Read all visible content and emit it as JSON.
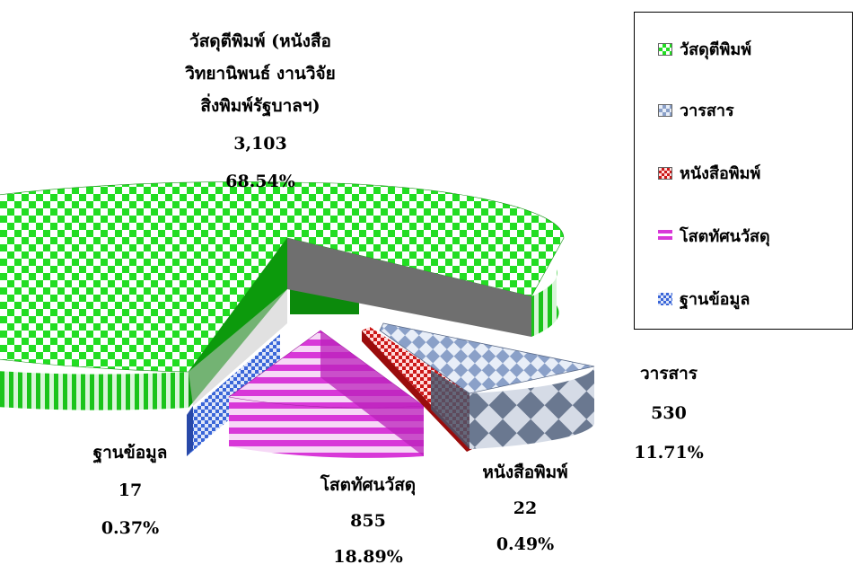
{
  "chart_data": {
    "type": "pie",
    "slices": [
      {
        "name": "วัสดุตีพิมพ์",
        "label_lines": [
          "วัสดุตีพิมพ์ (หนังสือ",
          "วิทยานิพนธ์ งานวิจัย",
          "สิ่งพิมพ์รัฐบาลฯ)"
        ],
        "value": 3103,
        "value_text": "3,103",
        "percent": "68.54%",
        "color": "#22dd22"
      },
      {
        "name": "วารสาร",
        "label_lines": [
          "วารสาร"
        ],
        "value": 530,
        "value_text": "530",
        "percent": "11.71%",
        "color": "#8aa0c8"
      },
      {
        "name": "หนังสือพิมพ์",
        "label_lines": [
          "หนังสือพิมพ์"
        ],
        "value": 22,
        "value_text": "22",
        "percent": "0.49%",
        "color": "#cc1818"
      },
      {
        "name": "โสตทัศนวัสดุ",
        "label_lines": [
          "โสตทัศนวัสดุ"
        ],
        "value": 855,
        "value_text": "855",
        "percent": "18.89%",
        "color": "#d838d8"
      },
      {
        "name": "ฐานข้อมูล",
        "label_lines": [
          "ฐานข้อมูล"
        ],
        "value": 17,
        "value_text": "17",
        "percent": "0.37%",
        "color": "#3a66d8"
      }
    ],
    "legend": {
      "position": "right",
      "items": [
        "วัสดุตีพิมพ์",
        "วารสาร",
        "หนังสือพิมพ์",
        "โสตทัศนวัสดุ",
        "ฐานข้อมูล"
      ]
    }
  }
}
